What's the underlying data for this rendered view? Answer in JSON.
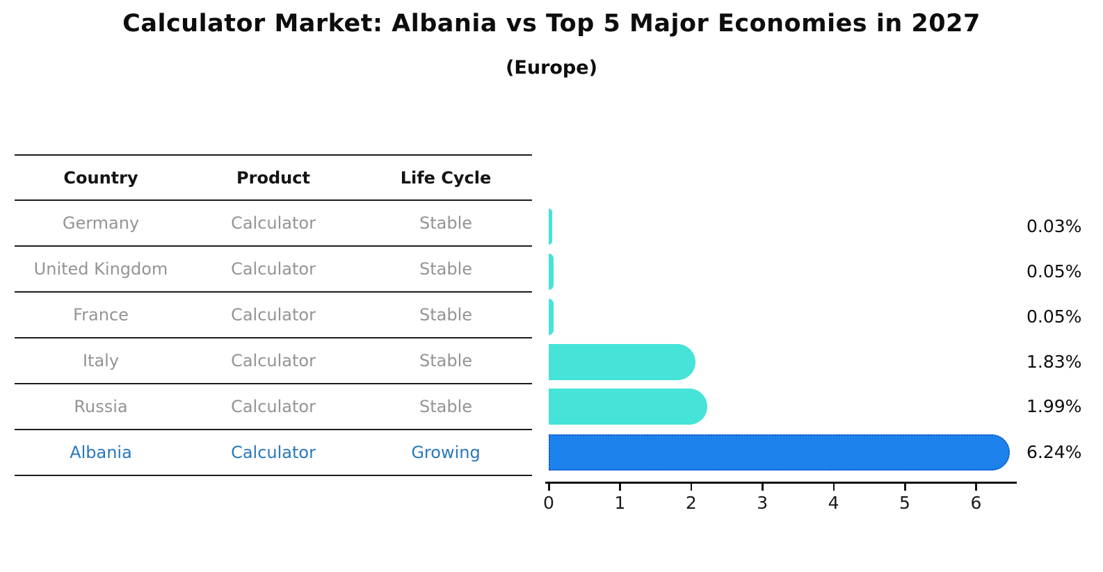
{
  "title": "Calculator Market: Albania vs Top 5 Major Economies in 2027",
  "subtitle": "(Europe)",
  "table": {
    "columns": [
      "Country",
      "Product",
      "Life Cycle"
    ],
    "rows": [
      {
        "country": "Germany",
        "product": "Calculator",
        "life_cycle": "Stable",
        "highlight": false
      },
      {
        "country": "United Kingdom",
        "product": "Calculator",
        "life_cycle": "Stable",
        "highlight": false
      },
      {
        "country": "France",
        "product": "Calculator",
        "life_cycle": "Stable",
        "highlight": false
      },
      {
        "country": "Italy",
        "product": "Calculator",
        "life_cycle": "Stable",
        "highlight": false
      },
      {
        "country": "Russia",
        "product": "Calculator",
        "life_cycle": "Stable",
        "highlight": false
      },
      {
        "country": "Albania",
        "product": "Calculator",
        "life_cycle": "Growing",
        "highlight": true
      }
    ]
  },
  "chart_data": {
    "type": "bar",
    "orientation": "horizontal",
    "title": "Calculator Market: Albania vs Top 5 Major Economies in 2027",
    "subtitle": "(Europe)",
    "categories": [
      "Germany",
      "United Kingdom",
      "France",
      "Italy",
      "Russia",
      "Albania"
    ],
    "values": [
      0.03,
      0.05,
      0.05,
      1.83,
      1.99,
      6.24
    ],
    "value_labels": [
      "0.03%",
      "0.05%",
      "0.05%",
      "1.83%",
      "1.99%",
      "6.24%"
    ],
    "x_ticks": [
      "0",
      "1",
      "2",
      "3",
      "4",
      "5",
      "6"
    ],
    "xlim": [
      0,
      6.55
    ],
    "grid": false,
    "legend": "none",
    "bar_color": "#45e3d8",
    "highlight_index": 5,
    "highlight_bar_color": "#1e82ec",
    "highlight_border_color": "#1559c8",
    "highlight_text_color": "#2878be"
  }
}
